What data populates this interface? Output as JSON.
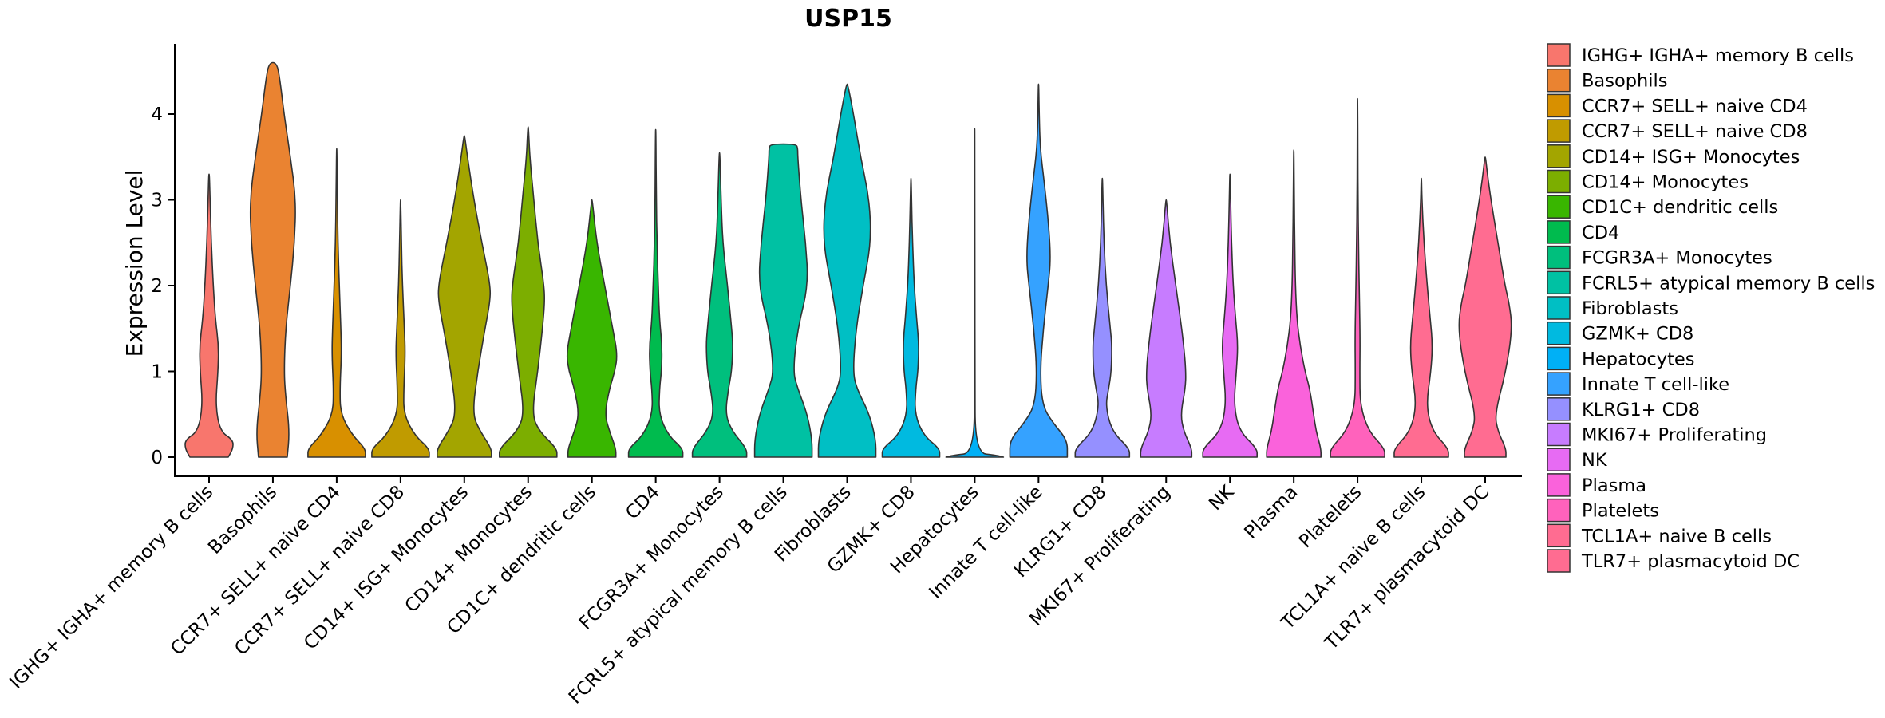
{
  "chart_data": {
    "type": "violin",
    "title": "USP15",
    "xlabel": "",
    "ylabel": "Expression Level",
    "ylim": [
      -0.2,
      4.8
    ],
    "yticks": [
      0,
      1,
      2,
      3,
      4
    ],
    "grid": false,
    "legend": "right",
    "categories": [
      "IGHG+ IGHA+ memory B cells",
      "Basophils",
      "CCR7+ SELL+ naive CD4",
      "CCR7+ SELL+ naive CD8",
      "CD14+ ISG+ Monocytes",
      "CD14+ Monocytes",
      "CD1C+ dendritic cells",
      "CD4",
      "FCGR3A+ Monocytes",
      "FCRL5+ atypical memory B cells",
      "Fibroblasts",
      "GZMK+ CD8",
      "Hepatocytes",
      "Innate T cell-like",
      "KLRG1+ CD8",
      "MKI67+ Proliferating",
      "NK",
      "Plasma",
      "Platelets",
      "TCL1A+ naive B cells",
      "TLR7+ plasmacytoid DC"
    ],
    "legend_labels": [
      " IGHG+ IGHA+ memory B cells",
      "Basophils",
      "CCR7+ SELL+ naive CD4",
      "CCR7+ SELL+ naive CD8",
      "CD14+ ISG+ Monocytes",
      "CD14+ Monocytes",
      "CD1C+ dendritic cells",
      "CD4",
      "FCGR3A+ Monocytes",
      "FCRL5+ atypical memory B cells",
      "Fibroblasts",
      "GZMK+ CD8",
      "Hepatocytes",
      "Innate T cell-like",
      "KLRG1+ CD8",
      "MKI67+ Proliferating",
      "NK",
      "Plasma",
      "Platelets",
      "TCL1A+ naive B cells",
      "TLR7+ plasmacytoid DC"
    ],
    "colors": [
      "#F8766D",
      "#EA8331",
      "#D89000",
      "#C09B00",
      "#A3A500",
      "#7CAE00",
      "#39B600",
      "#00BB4E",
      "#00BF7D",
      "#00C1A3",
      "#00BFC4",
      "#00BAE0",
      "#00B0F6",
      "#35A2FF",
      "#9590FF",
      "#C77CFF",
      "#E76BF3",
      "#FA62DB",
      "#FF62BC",
      "#FF6C91",
      "#FF6C91"
    ],
    "series": [
      {
        "name": "IGHG+ IGHA+ memory B cells",
        "max": 3.3,
        "profile": [
          [
            0,
            0.6
          ],
          [
            0.1,
            0.75
          ],
          [
            0.2,
            0.75
          ],
          [
            0.3,
            0.35
          ],
          [
            0.6,
            0.2
          ],
          [
            1.0,
            0.28
          ],
          [
            1.3,
            0.3
          ],
          [
            1.6,
            0.2
          ],
          [
            2.0,
            0.13
          ],
          [
            2.5,
            0.07
          ],
          [
            3.0,
            0.03
          ],
          [
            3.3,
            0.01
          ]
        ]
      },
      {
        "name": "Basophils",
        "max": 4.6,
        "profile": [
          [
            0,
            0.45
          ],
          [
            0.3,
            0.52
          ],
          [
            0.7,
            0.4
          ],
          [
            1.0,
            0.35
          ],
          [
            1.5,
            0.4
          ],
          [
            2.0,
            0.55
          ],
          [
            2.5,
            0.68
          ],
          [
            3.0,
            0.72
          ],
          [
            3.5,
            0.55
          ],
          [
            4.0,
            0.35
          ],
          [
            4.4,
            0.22
          ],
          [
            4.6,
            0.12
          ]
        ]
      },
      {
        "name": "CCR7+ SELL+ naive CD4",
        "max": 3.6,
        "profile": [
          [
            0,
            0.9
          ],
          [
            0.1,
            0.9
          ],
          [
            0.25,
            0.5
          ],
          [
            0.5,
            0.12
          ],
          [
            0.8,
            0.1
          ],
          [
            1.2,
            0.15
          ],
          [
            1.5,
            0.13
          ],
          [
            2.0,
            0.08
          ],
          [
            2.5,
            0.04
          ],
          [
            3.0,
            0.02
          ],
          [
            3.6,
            0.005
          ]
        ]
      },
      {
        "name": "CCR7+ SELL+ naive CD8",
        "max": 3.0,
        "profile": [
          [
            0,
            0.9
          ],
          [
            0.1,
            0.9
          ],
          [
            0.25,
            0.45
          ],
          [
            0.5,
            0.1
          ],
          [
            0.8,
            0.1
          ],
          [
            1.2,
            0.15
          ],
          [
            1.5,
            0.12
          ],
          [
            2.0,
            0.06
          ],
          [
            2.5,
            0.03
          ],
          [
            3.0,
            0.005
          ]
        ]
      },
      {
        "name": "CD14+ ISG+ Monocytes",
        "max": 3.75,
        "profile": [
          [
            0,
            0.85
          ],
          [
            0.1,
            0.85
          ],
          [
            0.3,
            0.5
          ],
          [
            0.5,
            0.25
          ],
          [
            1.0,
            0.42
          ],
          [
            1.5,
            0.65
          ],
          [
            1.8,
            0.8
          ],
          [
            2.0,
            0.82
          ],
          [
            2.5,
            0.55
          ],
          [
            3.0,
            0.3
          ],
          [
            3.5,
            0.1
          ],
          [
            3.75,
            0.01
          ]
        ]
      },
      {
        "name": "CD14+ Monocytes",
        "max": 3.85,
        "profile": [
          [
            0,
            0.9
          ],
          [
            0.1,
            0.9
          ],
          [
            0.3,
            0.35
          ],
          [
            0.5,
            0.12
          ],
          [
            1.0,
            0.3
          ],
          [
            1.5,
            0.45
          ],
          [
            1.8,
            0.52
          ],
          [
            2.0,
            0.5
          ],
          [
            2.5,
            0.3
          ],
          [
            3.0,
            0.18
          ],
          [
            3.5,
            0.05
          ],
          [
            3.85,
            0.01
          ]
        ]
      },
      {
        "name": "CD1C+ dendritic cells",
        "max": 3.0,
        "profile": [
          [
            0,
            0.75
          ],
          [
            0.1,
            0.75
          ],
          [
            0.3,
            0.55
          ],
          [
            0.5,
            0.4
          ],
          [
            0.8,
            0.55
          ],
          [
            1.0,
            0.72
          ],
          [
            1.2,
            0.8
          ],
          [
            1.5,
            0.65
          ],
          [
            2.0,
            0.4
          ],
          [
            2.5,
            0.15
          ],
          [
            3.0,
            0.01
          ]
        ]
      },
      {
        "name": "CD4",
        "max": 3.82,
        "profile": [
          [
            0,
            0.85
          ],
          [
            0.1,
            0.85
          ],
          [
            0.25,
            0.4
          ],
          [
            0.5,
            0.1
          ],
          [
            0.8,
            0.12
          ],
          [
            1.0,
            0.18
          ],
          [
            1.3,
            0.2
          ],
          [
            1.6,
            0.12
          ],
          [
            2.0,
            0.08
          ],
          [
            2.5,
            0.04
          ],
          [
            3.0,
            0.02
          ],
          [
            3.82,
            0.005
          ]
        ]
      },
      {
        "name": "FCGR3A+ Monocytes",
        "max": 3.55,
        "profile": [
          [
            0,
            0.85
          ],
          [
            0.1,
            0.85
          ],
          [
            0.3,
            0.4
          ],
          [
            0.5,
            0.18
          ],
          [
            0.8,
            0.28
          ],
          [
            1.0,
            0.38
          ],
          [
            1.3,
            0.42
          ],
          [
            1.5,
            0.38
          ],
          [
            2.0,
            0.25
          ],
          [
            2.5,
            0.1
          ],
          [
            3.0,
            0.05
          ],
          [
            3.55,
            0.01
          ]
        ]
      },
      {
        "name": "FCRL5+ atypical memory B cells",
        "max": 3.65,
        "profile": [
          [
            0,
            0.9
          ],
          [
            0.2,
            0.9
          ],
          [
            0.5,
            0.75
          ],
          [
            0.8,
            0.45
          ],
          [
            1.0,
            0.3
          ],
          [
            1.5,
            0.45
          ],
          [
            2.0,
            0.78
          ],
          [
            2.5,
            0.7
          ],
          [
            3.0,
            0.55
          ],
          [
            3.5,
            0.45
          ],
          [
            3.6,
            0.45
          ],
          [
            3.65,
            0.4
          ]
        ]
      },
      {
        "name": "Fibroblasts",
        "max": 4.35,
        "profile": [
          [
            0,
            0.9
          ],
          [
            0.2,
            0.9
          ],
          [
            0.5,
            0.7
          ],
          [
            0.8,
            0.3
          ],
          [
            1.0,
            0.18
          ],
          [
            1.5,
            0.28
          ],
          [
            2.0,
            0.5
          ],
          [
            2.5,
            0.75
          ],
          [
            3.0,
            0.7
          ],
          [
            3.5,
            0.42
          ],
          [
            4.0,
            0.2
          ],
          [
            4.35,
            0.02
          ]
        ]
      },
      {
        "name": "GZMK+ CD8",
        "max": 3.25,
        "profile": [
          [
            0,
            0.9
          ],
          [
            0.1,
            0.9
          ],
          [
            0.25,
            0.4
          ],
          [
            0.5,
            0.12
          ],
          [
            0.8,
            0.15
          ],
          [
            1.0,
            0.22
          ],
          [
            1.3,
            0.25
          ],
          [
            1.6,
            0.18
          ],
          [
            2.0,
            0.1
          ],
          [
            2.5,
            0.05
          ],
          [
            3.0,
            0.02
          ],
          [
            3.25,
            0.005
          ]
        ]
      },
      {
        "name": "Hepatocytes",
        "max": 3.83,
        "profile": [
          [
            0,
            0.9
          ],
          [
            0.02,
            0.7
          ],
          [
            0.05,
            0.015
          ],
          [
            1.0,
            0.008
          ],
          [
            2.0,
            0.006
          ],
          [
            3.0,
            0.004
          ],
          [
            3.83,
            0.003
          ]
        ]
      },
      {
        "name": "Innate T cell-like",
        "max": 4.35,
        "profile": [
          [
            0,
            0.9
          ],
          [
            0.2,
            0.9
          ],
          [
            0.4,
            0.45
          ],
          [
            0.6,
            0.12
          ],
          [
            1.0,
            0.05
          ],
          [
            1.5,
            0.15
          ],
          [
            2.0,
            0.3
          ],
          [
            2.3,
            0.38
          ],
          [
            2.7,
            0.32
          ],
          [
            3.2,
            0.18
          ],
          [
            3.6,
            0.05
          ],
          [
            4.0,
            0.02
          ],
          [
            4.35,
            0.005
          ]
        ]
      },
      {
        "name": "KLRG1+ CD8",
        "max": 3.25,
        "profile": [
          [
            0,
            0.85
          ],
          [
            0.1,
            0.85
          ],
          [
            0.3,
            0.3
          ],
          [
            0.6,
            0.1
          ],
          [
            0.8,
            0.2
          ],
          [
            1.0,
            0.28
          ],
          [
            1.3,
            0.3
          ],
          [
            1.5,
            0.25
          ],
          [
            2.0,
            0.12
          ],
          [
            2.5,
            0.05
          ],
          [
            3.0,
            0.02
          ],
          [
            3.25,
            0.005
          ]
        ]
      },
      {
        "name": "MKI67+ Proliferating",
        "max": 3.0,
        "profile": [
          [
            0,
            0.8
          ],
          [
            0.1,
            0.8
          ],
          [
            0.3,
            0.55
          ],
          [
            0.5,
            0.45
          ],
          [
            0.8,
            0.6
          ],
          [
            1.0,
            0.62
          ],
          [
            1.3,
            0.55
          ],
          [
            1.6,
            0.45
          ],
          [
            2.0,
            0.3
          ],
          [
            2.5,
            0.12
          ],
          [
            3.0,
            0.01
          ]
        ]
      },
      {
        "name": "NK",
        "max": 3.3,
        "profile": [
          [
            0,
            0.85
          ],
          [
            0.1,
            0.85
          ],
          [
            0.3,
            0.3
          ],
          [
            0.6,
            0.12
          ],
          [
            1.0,
            0.2
          ],
          [
            1.3,
            0.25
          ],
          [
            1.6,
            0.18
          ],
          [
            2.0,
            0.1
          ],
          [
            2.5,
            0.05
          ],
          [
            3.0,
            0.02
          ],
          [
            3.3,
            0.005
          ]
        ]
      },
      {
        "name": "Plasma",
        "max": 3.58,
        "profile": [
          [
            0,
            0.85
          ],
          [
            0.1,
            0.85
          ],
          [
            0.3,
            0.7
          ],
          [
            0.5,
            0.62
          ],
          [
            0.8,
            0.5
          ],
          [
            1.0,
            0.35
          ],
          [
            1.3,
            0.2
          ],
          [
            1.6,
            0.1
          ],
          [
            2.0,
            0.05
          ],
          [
            2.5,
            0.03
          ],
          [
            3.0,
            0.015
          ],
          [
            3.58,
            0.005
          ]
        ]
      },
      {
        "name": "Platelets",
        "max": 4.18,
        "profile": [
          [
            0,
            0.85
          ],
          [
            0.1,
            0.85
          ],
          [
            0.3,
            0.35
          ],
          [
            0.6,
            0.08
          ],
          [
            1.0,
            0.07
          ],
          [
            1.4,
            0.08
          ],
          [
            2.0,
            0.05
          ],
          [
            2.5,
            0.03
          ],
          [
            3.0,
            0.015
          ],
          [
            3.5,
            0.01
          ],
          [
            4.18,
            0.003
          ]
        ]
      },
      {
        "name": "TCL1A+ naive B cells",
        "max": 3.25,
        "profile": [
          [
            0,
            0.85
          ],
          [
            0.1,
            0.85
          ],
          [
            0.3,
            0.35
          ],
          [
            0.6,
            0.15
          ],
          [
            1.0,
            0.3
          ],
          [
            1.3,
            0.35
          ],
          [
            1.6,
            0.28
          ],
          [
            2.0,
            0.18
          ],
          [
            2.5,
            0.08
          ],
          [
            3.0,
            0.02
          ],
          [
            3.25,
            0.005
          ]
        ]
      },
      {
        "name": "TLR7+ plasmacytoid DC",
        "max": 3.5,
        "profile": [
          [
            0,
            0.65
          ],
          [
            0.1,
            0.65
          ],
          [
            0.3,
            0.4
          ],
          [
            0.5,
            0.3
          ],
          [
            1.0,
            0.65
          ],
          [
            1.5,
            0.85
          ],
          [
            1.8,
            0.75
          ],
          [
            2.0,
            0.62
          ],
          [
            2.5,
            0.4
          ],
          [
            3.0,
            0.18
          ],
          [
            3.3,
            0.07
          ],
          [
            3.5,
            0.01
          ]
        ]
      }
    ]
  }
}
